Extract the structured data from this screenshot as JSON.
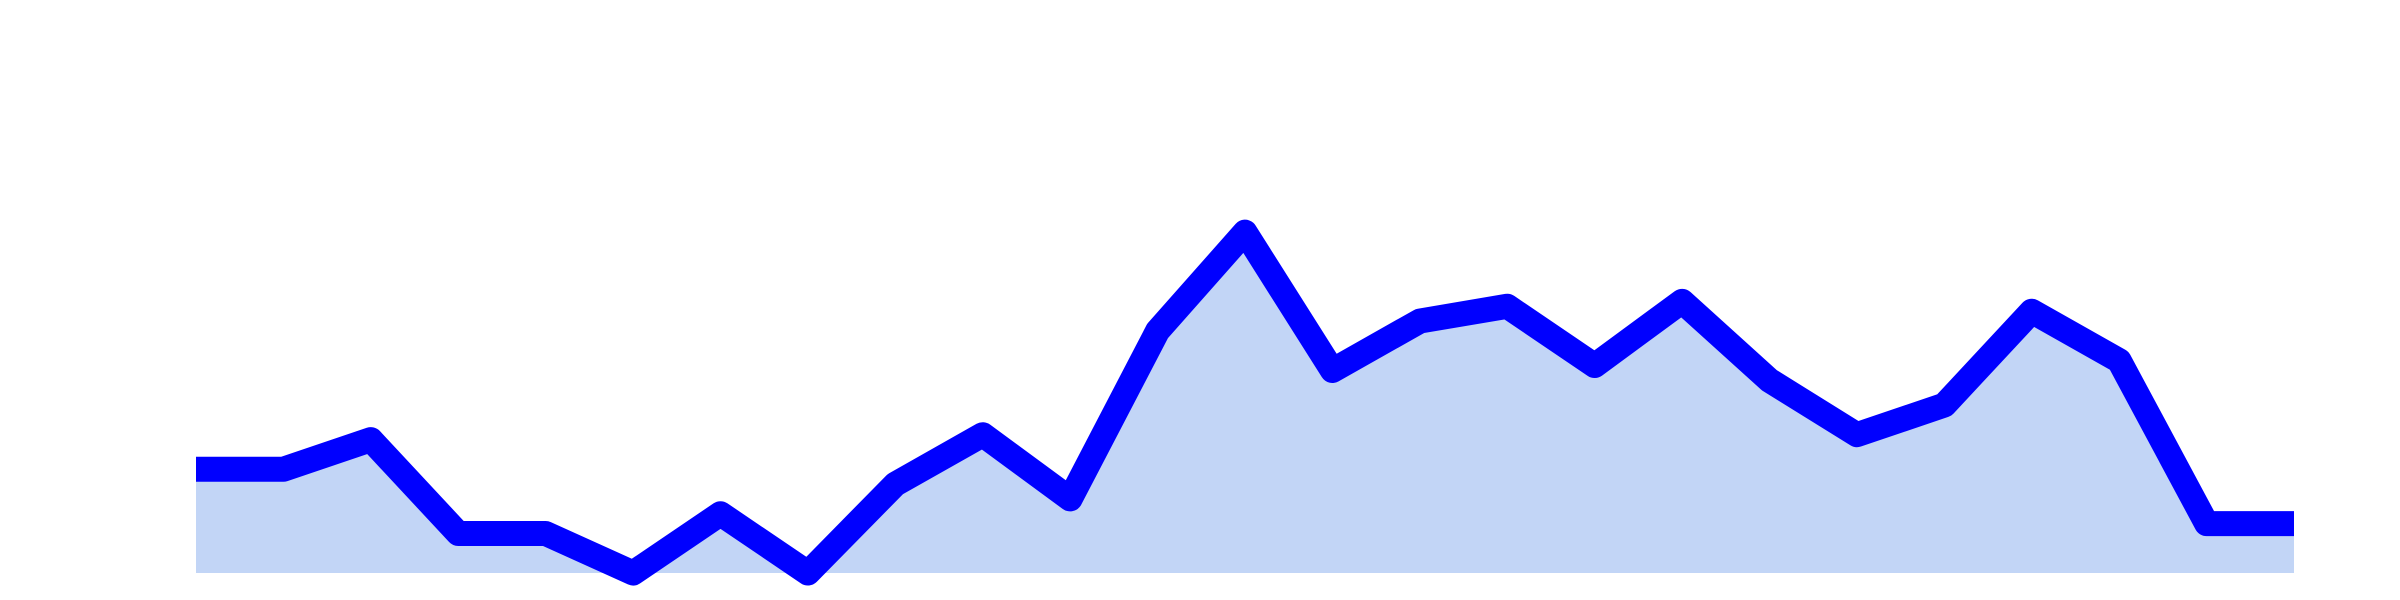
{
  "chart_data": {
    "type": "area",
    "x": [
      1,
      2,
      3,
      4,
      5,
      6,
      7,
      8,
      9,
      10,
      11,
      12,
      13,
      14,
      15,
      16,
      17,
      18,
      19,
      20,
      21,
      22,
      23,
      24,
      25
    ],
    "series": [
      {
        "values": [
          21,
          21,
          27,
          8,
          8,
          0,
          12,
          0,
          18,
          28,
          15,
          49,
          69,
          41,
          51,
          54,
          42,
          55,
          39,
          28,
          34,
          53,
          43,
          10,
          10
        ]
      }
    ],
    "ylim": [
      0,
      116
    ],
    "xlim": [
      1,
      25
    ],
    "grid": false,
    "axes_visible": false,
    "line_color": "#0000ff",
    "fill_color": "#c2d5f6"
  }
}
